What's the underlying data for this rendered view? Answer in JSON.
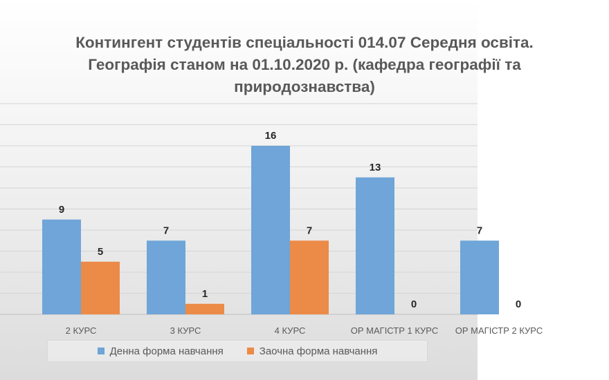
{
  "chart_data": {
    "type": "bar",
    "title_lines": [
      "Контингент студентів спеціальності 014.07 Середня освіта.",
      "Географія станом на 01.10.2020 р. (кафедра географії та",
      "природознавства)"
    ],
    "categories": [
      "2 КУРС",
      "3 КУРС",
      "4 КУРС",
      "ОР МАГІСТР 1 КУРС",
      "ОР МАГІСТР 2 КУРС"
    ],
    "series": [
      {
        "name": "Денна форма навчання",
        "values": [
          9,
          7,
          16,
          13,
          7
        ],
        "color": "#6fa5d8"
      },
      {
        "name": "Заочна форма навчання",
        "values": [
          5,
          1,
          7,
          0,
          0
        ],
        "color": "#ec8a48"
      }
    ],
    "ylim": [
      0,
      20
    ],
    "y_grid_step": 2,
    "grid": true,
    "y_ticks_visible": false,
    "data_labels": true,
    "legend_position": "bottom"
  }
}
